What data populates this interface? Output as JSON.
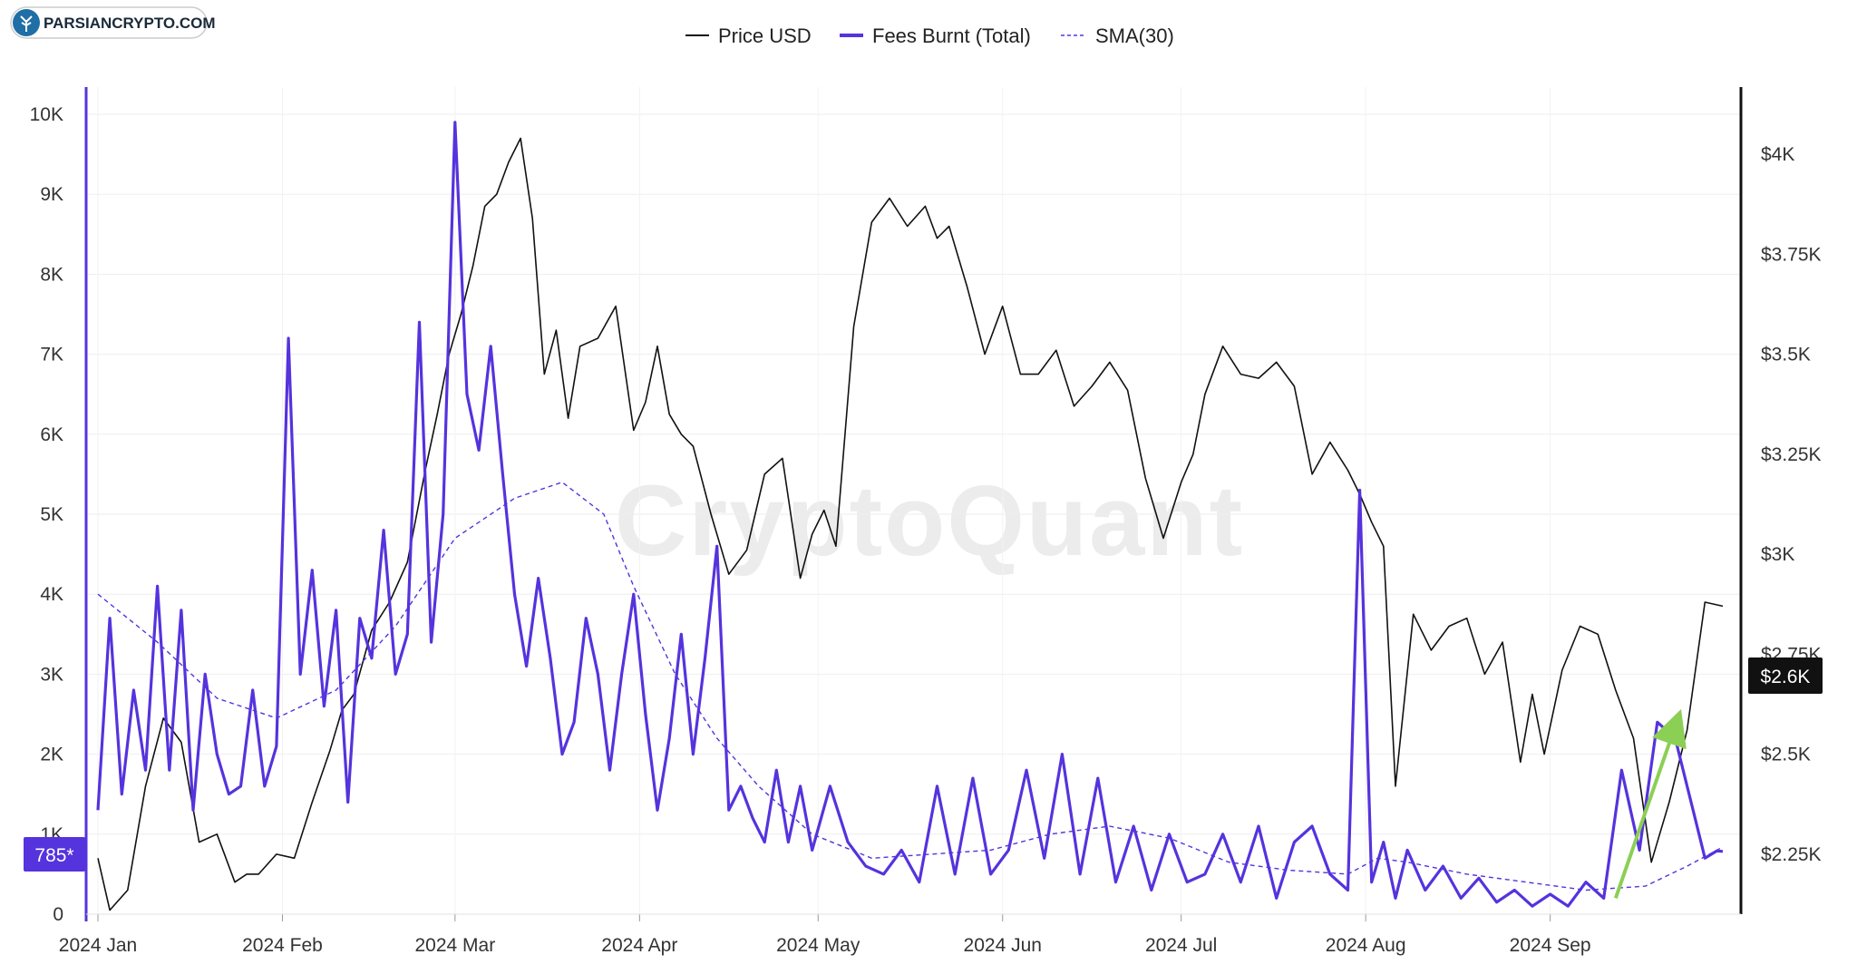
{
  "brand": {
    "logo_text": "PARSIANCRYPTO.COM",
    "watermark": "CryptoQuant"
  },
  "legend": {
    "items": [
      {
        "label": "Price USD",
        "color": "#111111",
        "style": "solid"
      },
      {
        "label": "Fees Burnt (Total)",
        "color": "#5533dd",
        "style": "solid"
      },
      {
        "label": "SMA(30)",
        "color": "#5533dd",
        "style": "dashed"
      }
    ]
  },
  "badges": {
    "fees_current": "785*",
    "price_current": "$2.6K"
  },
  "colors": {
    "price": "#111111",
    "fees": "#5533dd",
    "sma": "#5533dd",
    "arrow": "#8bcf55",
    "grid": "#eeeeee"
  },
  "chart_data": {
    "type": "line",
    "x_labels": [
      "2024 Jan",
      "2024 Feb",
      "2024 Mar",
      "2024 Apr",
      "2024 May",
      "2024 Jun",
      "2024 Jul",
      "2024 Aug",
      "2024 Sep"
    ],
    "x_label_days": [
      0,
      31,
      60,
      91,
      121,
      152,
      182,
      213,
      244
    ],
    "x_range_days": [
      0,
      273
    ],
    "left_axis": {
      "range": [
        0,
        10000
      ],
      "ticks": [
        0,
        1000,
        2000,
        3000,
        4000,
        5000,
        6000,
        7000,
        8000,
        9000,
        10000
      ],
      "tick_labels": [
        "0",
        "1K",
        "2K",
        "3K",
        "4K",
        "5K",
        "6K",
        "7K",
        "8K",
        "9K",
        "10K"
      ]
    },
    "right_axis": {
      "range": [
        2100,
        4100
      ],
      "ticks": [
        2250,
        2500,
        2750,
        3000,
        3250,
        3500,
        3750,
        4000
      ],
      "tick_labels": [
        "$2.25K",
        "$2.5K",
        "$2.75K",
        "$3K",
        "$3.25K",
        "$3.5K",
        "$3.75K",
        "$4K"
      ]
    },
    "grid": true,
    "legend_position": "top-center",
    "series": [
      {
        "name": "Price USD",
        "axis": "right",
        "x": [
          0,
          2,
          5,
          8,
          11,
          14,
          17,
          20,
          23,
          25,
          27,
          30,
          33,
          36,
          39,
          41,
          43,
          46,
          49,
          52,
          55,
          57,
          59,
          61,
          63,
          65,
          67,
          69,
          71,
          73,
          75,
          77,
          79,
          81,
          84,
          87,
          90,
          92,
          94,
          96,
          98,
          100,
          103,
          106,
          109,
          112,
          115,
          118,
          120,
          122,
          124,
          127,
          130,
          133,
          136,
          139,
          141,
          143,
          146,
          149,
          152,
          155,
          158,
          161,
          164,
          167,
          170,
          173,
          176,
          179,
          182,
          184,
          186,
          189,
          192,
          195,
          198,
          201,
          204,
          207,
          210,
          212,
          214,
          216,
          218,
          221,
          224,
          227,
          230,
          233,
          236,
          239,
          241,
          243,
          246,
          249,
          252,
          255,
          258,
          261,
          264,
          267,
          270,
          273
        ],
        "y": [
          2240,
          2110,
          2160,
          2420,
          2590,
          2530,
          2280,
          2300,
          2180,
          2200,
          2200,
          2250,
          2240,
          2380,
          2510,
          2610,
          2650,
          2810,
          2880,
          2980,
          3210,
          3350,
          3500,
          3600,
          3720,
          3870,
          3900,
          3980,
          4040,
          3840,
          3450,
          3560,
          3340,
          3520,
          3540,
          3620,
          3310,
          3380,
          3520,
          3350,
          3300,
          3270,
          3100,
          2950,
          3010,
          3200,
          3240,
          2940,
          3050,
          3110,
          3020,
          3570,
          3830,
          3890,
          3820,
          3870,
          3790,
          3820,
          3670,
          3500,
          3620,
          3450,
          3450,
          3510,
          3370,
          3420,
          3480,
          3410,
          3190,
          3040,
          3180,
          3250,
          3400,
          3520,
          3450,
          3440,
          3480,
          3420,
          3200,
          3280,
          3210,
          3150,
          3080,
          3020,
          2420,
          2850,
          2760,
          2820,
          2840,
          2700,
          2780,
          2480,
          2650,
          2500,
          2710,
          2820,
          2800,
          2660,
          2540,
          2230,
          2380,
          2560,
          2880,
          2870
        ]
      },
      {
        "name": "Fees Burnt (Total)",
        "axis": "left",
        "x": [
          0,
          2,
          4,
          6,
          8,
          10,
          12,
          14,
          16,
          18,
          20,
          22,
          24,
          26,
          28,
          30,
          32,
          34,
          36,
          38,
          40,
          42,
          44,
          46,
          48,
          50,
          52,
          54,
          56,
          58,
          60,
          62,
          64,
          66,
          68,
          70,
          72,
          74,
          76,
          78,
          80,
          82,
          84,
          86,
          88,
          90,
          92,
          94,
          96,
          98,
          100,
          102,
          104,
          106,
          108,
          110,
          112,
          114,
          116,
          118,
          120,
          123,
          126,
          129,
          132,
          135,
          138,
          141,
          144,
          147,
          150,
          153,
          156,
          159,
          162,
          165,
          168,
          171,
          174,
          177,
          180,
          183,
          186,
          189,
          192,
          195,
          198,
          201,
          204,
          207,
          210,
          212,
          214,
          216,
          218,
          220,
          223,
          226,
          229,
          232,
          235,
          238,
          241,
          244,
          247,
          250,
          253,
          256,
          259,
          262,
          265,
          268,
          270,
          272,
          273
        ],
        "y": [
          1300,
          3700,
          1500,
          2800,
          1800,
          4100,
          1800,
          3800,
          1300,
          3000,
          2000,
          1500,
          1600,
          2800,
          1600,
          2100,
          7200,
          3000,
          4300,
          2600,
          3800,
          1400,
          3700,
          3200,
          4800,
          3000,
          3500,
          7400,
          3400,
          5000,
          9900,
          6500,
          5800,
          7100,
          5500,
          4000,
          3100,
          4200,
          3200,
          2000,
          2400,
          3700,
          3000,
          1800,
          3000,
          4000,
          2500,
          1300,
          2200,
          3500,
          2000,
          3200,
          4600,
          1300,
          1600,
          1200,
          900,
          1800,
          900,
          1600,
          800,
          1600,
          900,
          600,
          500,
          800,
          400,
          1600,
          500,
          1700,
          500,
          800,
          1800,
          700,
          2000,
          500,
          1700,
          400,
          1100,
          300,
          1000,
          400,
          500,
          1000,
          400,
          1100,
          200,
          900,
          1100,
          500,
          300,
          5300,
          400,
          900,
          200,
          800,
          300,
          600,
          200,
          450,
          150,
          300,
          100,
          250,
          100,
          400,
          200,
          1800,
          800,
          2400,
          2200,
          1300,
          700,
          790,
          785
        ]
      },
      {
        "name": "SMA(30)",
        "axis": "left",
        "x": [
          0,
          10,
          20,
          30,
          40,
          50,
          60,
          70,
          78,
          85,
          90,
          97,
          104,
          111,
          120,
          130,
          140,
          150,
          160,
          170,
          180,
          190,
          200,
          210,
          215,
          220,
          230,
          240,
          250,
          260,
          267,
          273
        ],
        "y": [
          4000,
          3400,
          2700,
          2450,
          2800,
          3600,
          4700,
          5200,
          5400,
          5000,
          4100,
          3000,
          2200,
          1600,
          1000,
          700,
          750,
          800,
          1000,
          1100,
          950,
          650,
          550,
          500,
          700,
          650,
          500,
          400,
          300,
          350,
          600,
          840
        ]
      }
    ],
    "annotations": [
      {
        "type": "arrow",
        "color": "#8bcf55",
        "from": {
          "x": 255,
          "y": 200
        },
        "to": {
          "x": 265,
          "y": 2350
        }
      }
    ]
  }
}
